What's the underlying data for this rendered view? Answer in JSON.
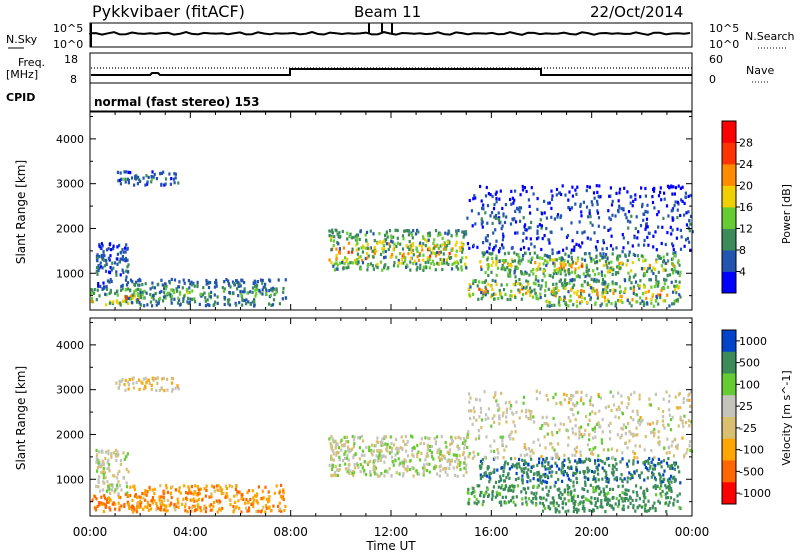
{
  "header": {
    "station": "Pykkvibaer (fitACF)",
    "beam": "Beam 11",
    "date": "22/Oct/2014"
  },
  "strips": {
    "nsky_label": "N.Sky",
    "nsky_tick_top": "10^5",
    "nsky_tick_bottom": "10^0",
    "nsearch_label": "N.Search",
    "nsearch_tick_top": "10^5",
    "nsearch_tick_bottom": "10^0",
    "freq_label": "Freq.",
    "freq_unit": "[MHz]",
    "freq_tick_top": "18",
    "freq_tick_bottom": "8",
    "nave_label": "Nave",
    "nave_tick_top": "60",
    "nave_tick_bottom": "0",
    "cpid_label": "CPID",
    "cpid_text": "normal (fast stereo) 153"
  },
  "colors": {
    "power": [
      "#0000ff",
      "#2255b0",
      "#3c8c5a",
      "#66cc33",
      "#f0d000",
      "#ff8c00",
      "#ff3300",
      "#ff0000"
    ],
    "velocity": [
      "#ff0000",
      "#ff6600",
      "#ffa500",
      "#d8c070",
      "#c4c4bc",
      "#66cc33",
      "#3c8c5a",
      "#0044cc"
    ],
    "background": "#ffffff"
  },
  "chart_data": [
    {
      "type": "heatmap",
      "title": "Power",
      "ylabel": "Slant Range [km]",
      "xlabel": "Time UT",
      "x_ticks": [
        "00:00",
        "04:00",
        "08:00",
        "12:00",
        "16:00",
        "20:00",
        "00:00"
      ],
      "y_ticks": [
        "1000",
        "2000",
        "3000",
        "4000"
      ],
      "ylim": [
        180,
        4600
      ],
      "colorbar": {
        "label": "Power [dB]",
        "ticks": [
          "4",
          "8",
          "12",
          "16",
          "20",
          "24",
          "28"
        ],
        "range": [
          0,
          32
        ]
      },
      "echo_regions": [
        {
          "t": [
            0.0,
            2.0
          ],
          "r": [
            300,
            700
          ],
          "peak": 30
        },
        {
          "t": [
            0.2,
            1.5
          ],
          "r": [
            700,
            1700
          ],
          "peak": 12
        },
        {
          "t": [
            1.5,
            7.8
          ],
          "r": [
            300,
            900
          ],
          "peak": 18
        },
        {
          "t": [
            1.0,
            3.5
          ],
          "r": [
            3000,
            3300
          ],
          "peak": 14
        },
        {
          "t": [
            9.5,
            15.0
          ],
          "r": [
            1100,
            2000
          ],
          "peak": 28
        },
        {
          "t": [
            15.0,
            18.0
          ],
          "r": [
            450,
            900
          ],
          "peak": 30
        },
        {
          "t": [
            18.0,
            23.5
          ],
          "r": [
            300,
            900
          ],
          "peak": 28
        },
        {
          "t": [
            15.5,
            23.5
          ],
          "r": [
            950,
            1500
          ],
          "peak": 26
        },
        {
          "t": [
            15.0,
            24.0
          ],
          "r": [
            1500,
            3000
          ],
          "peak": 10
        }
      ]
    },
    {
      "type": "heatmap",
      "title": "Velocity",
      "ylabel": "Slant Range [km]",
      "xlabel": "Time UT",
      "x_ticks": [
        "00:00",
        "04:00",
        "08:00",
        "12:00",
        "16:00",
        "20:00",
        "00:00"
      ],
      "y_ticks": [
        "1000",
        "2000",
        "3000",
        "4000"
      ],
      "ylim": [
        180,
        4600
      ],
      "colorbar": {
        "label": "Velocity [m s^-1]",
        "ticks": [
          "1000",
          "500",
          "100",
          "25",
          "-25",
          "-100",
          "-500",
          "-1000"
        ]
      },
      "echo_regions": [
        {
          "t": [
            0.0,
            2.0
          ],
          "r": [
            300,
            700
          ],
          "vel": -150
        },
        {
          "t": [
            0.2,
            1.5
          ],
          "r": [
            700,
            1700
          ],
          "vel": 10
        },
        {
          "t": [
            1.5,
            7.8
          ],
          "r": [
            300,
            900
          ],
          "vel": -80
        },
        {
          "t": [
            1.0,
            3.5
          ],
          "r": [
            3000,
            3300
          ],
          "vel": -10
        },
        {
          "t": [
            9.5,
            15.0
          ],
          "r": [
            1100,
            2000
          ],
          "vel": 10
        },
        {
          "t": [
            15.0,
            18.0
          ],
          "r": [
            450,
            900
          ],
          "vel": 150
        },
        {
          "t": [
            18.0,
            23.5
          ],
          "r": [
            300,
            900
          ],
          "vel": 200
        },
        {
          "t": [
            15.5,
            23.5
          ],
          "r": [
            950,
            1500
          ],
          "vel": 400
        },
        {
          "t": [
            15.0,
            24.0
          ],
          "r": [
            1500,
            3000
          ],
          "vel": 5
        }
      ]
    }
  ]
}
